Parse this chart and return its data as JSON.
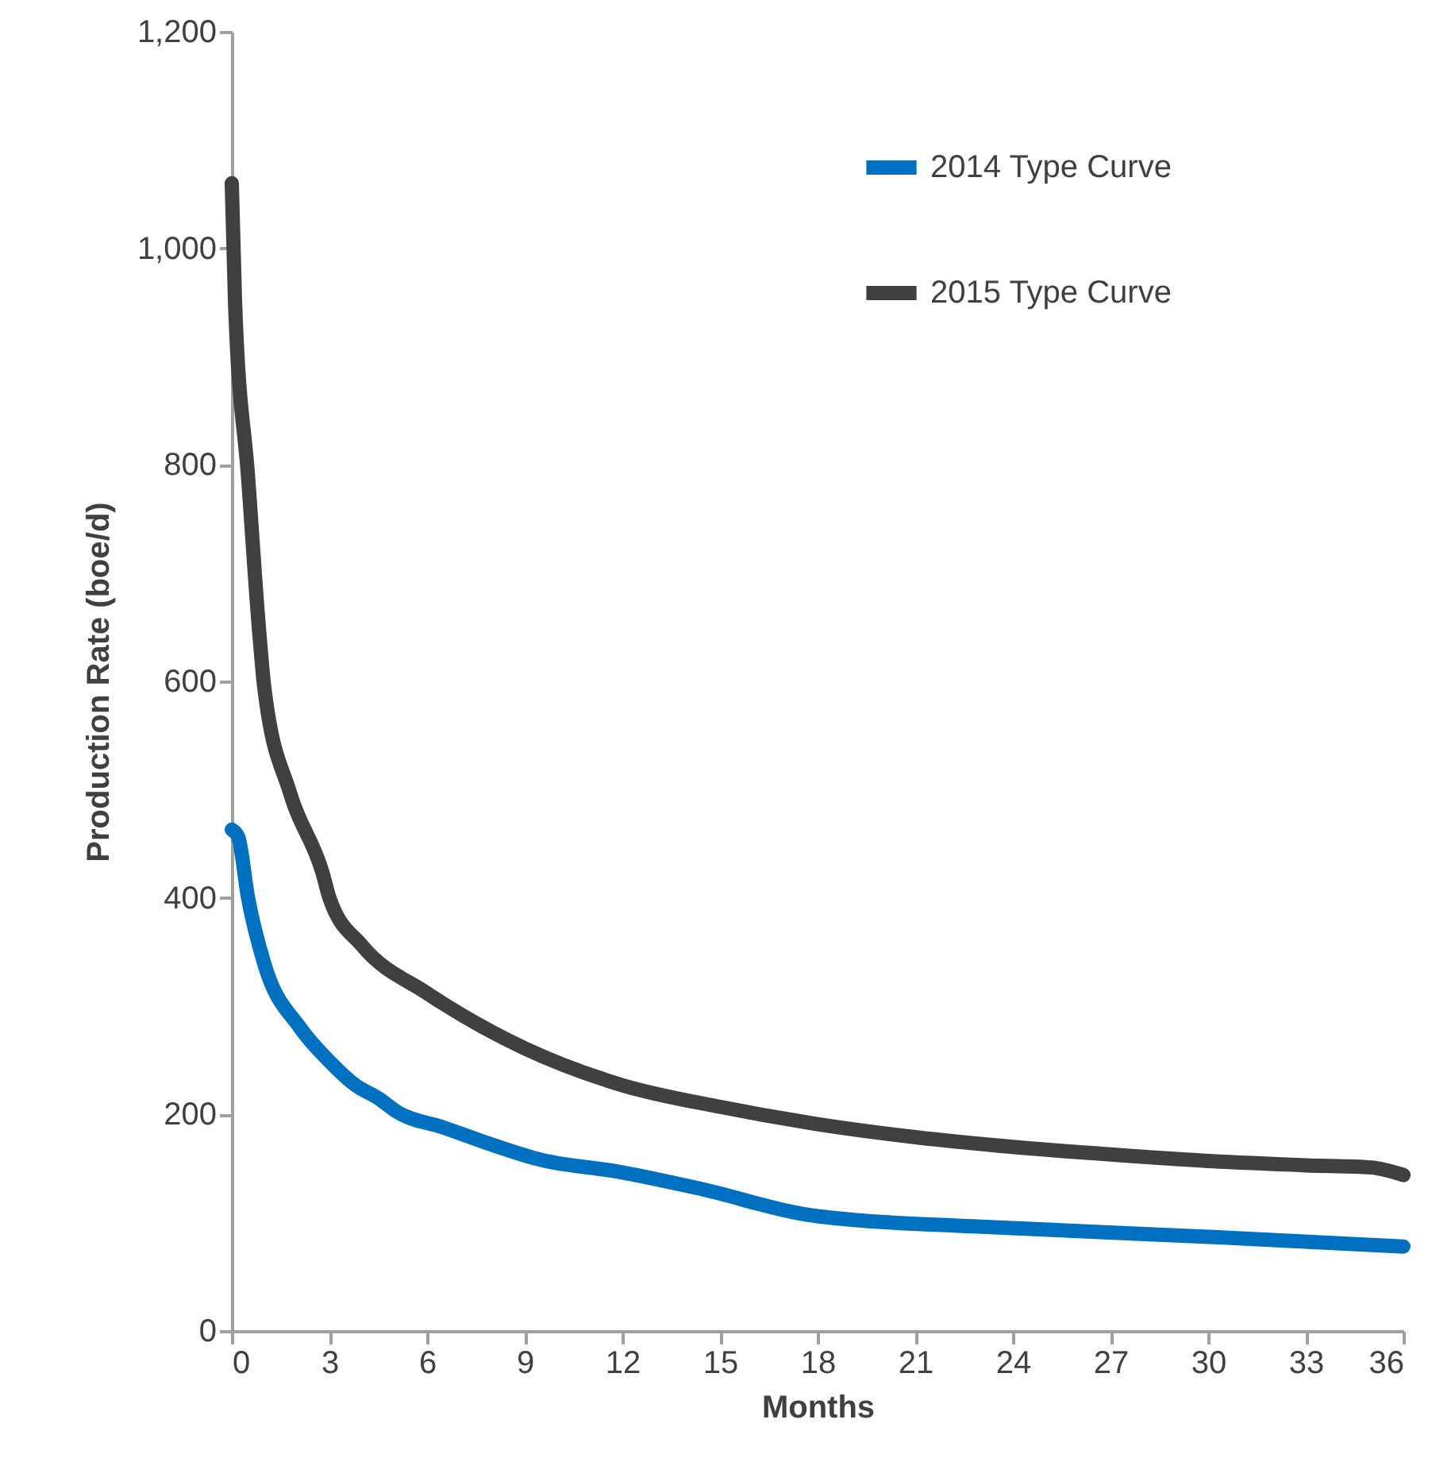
{
  "chart_data": {
    "type": "line",
    "xlabel": "Months",
    "ylabel": "Production Rate (boe/d)",
    "xlim": [
      0,
      36
    ],
    "xticks": [
      0,
      3,
      6,
      9,
      12,
      15,
      18,
      21,
      24,
      27,
      30,
      33,
      36
    ],
    "ylim": [
      0,
      1200
    ],
    "yticks": [
      0,
      200,
      400,
      600,
      800,
      {
        "value": 1000,
        "label": "1,000"
      },
      {
        "value": 1200,
        "label": "1,200"
      }
    ],
    "grid": false,
    "legend": "top right",
    "line_style": "solid",
    "series": [
      {
        "name": "2014 Type Curve",
        "color": "#0070c0",
        "x": [
          0,
          0.2,
          0.5,
          1,
          2.1,
          3,
          3.8,
          4.5,
          5.1,
          6.5,
          7.9,
          9.5,
          11.9,
          14.3,
          18,
          24,
          30,
          36
        ],
        "values": [
          463,
          456,
          400,
          339,
          280,
          249,
          227,
          215,
          202,
          188,
          173,
          158,
          147,
          132,
          106,
          95,
          87,
          78
        ]
      },
      {
        "name": "2015 Type Curve",
        "color": "#404040",
        "x": [
          0,
          0.1,
          0.5,
          0.85,
          1,
          1.8,
          2.8,
          3,
          4,
          6,
          9,
          12,
          15,
          18,
          21,
          24,
          27,
          30,
          33,
          35,
          36
        ],
        "values": [
          1060,
          950,
          789,
          643,
          594,
          496,
          422,
          400,
          356,
          312,
          261,
          227,
          207,
          191,
          179,
          170,
          163,
          157,
          153,
          151,
          144
        ]
      }
    ]
  }
}
